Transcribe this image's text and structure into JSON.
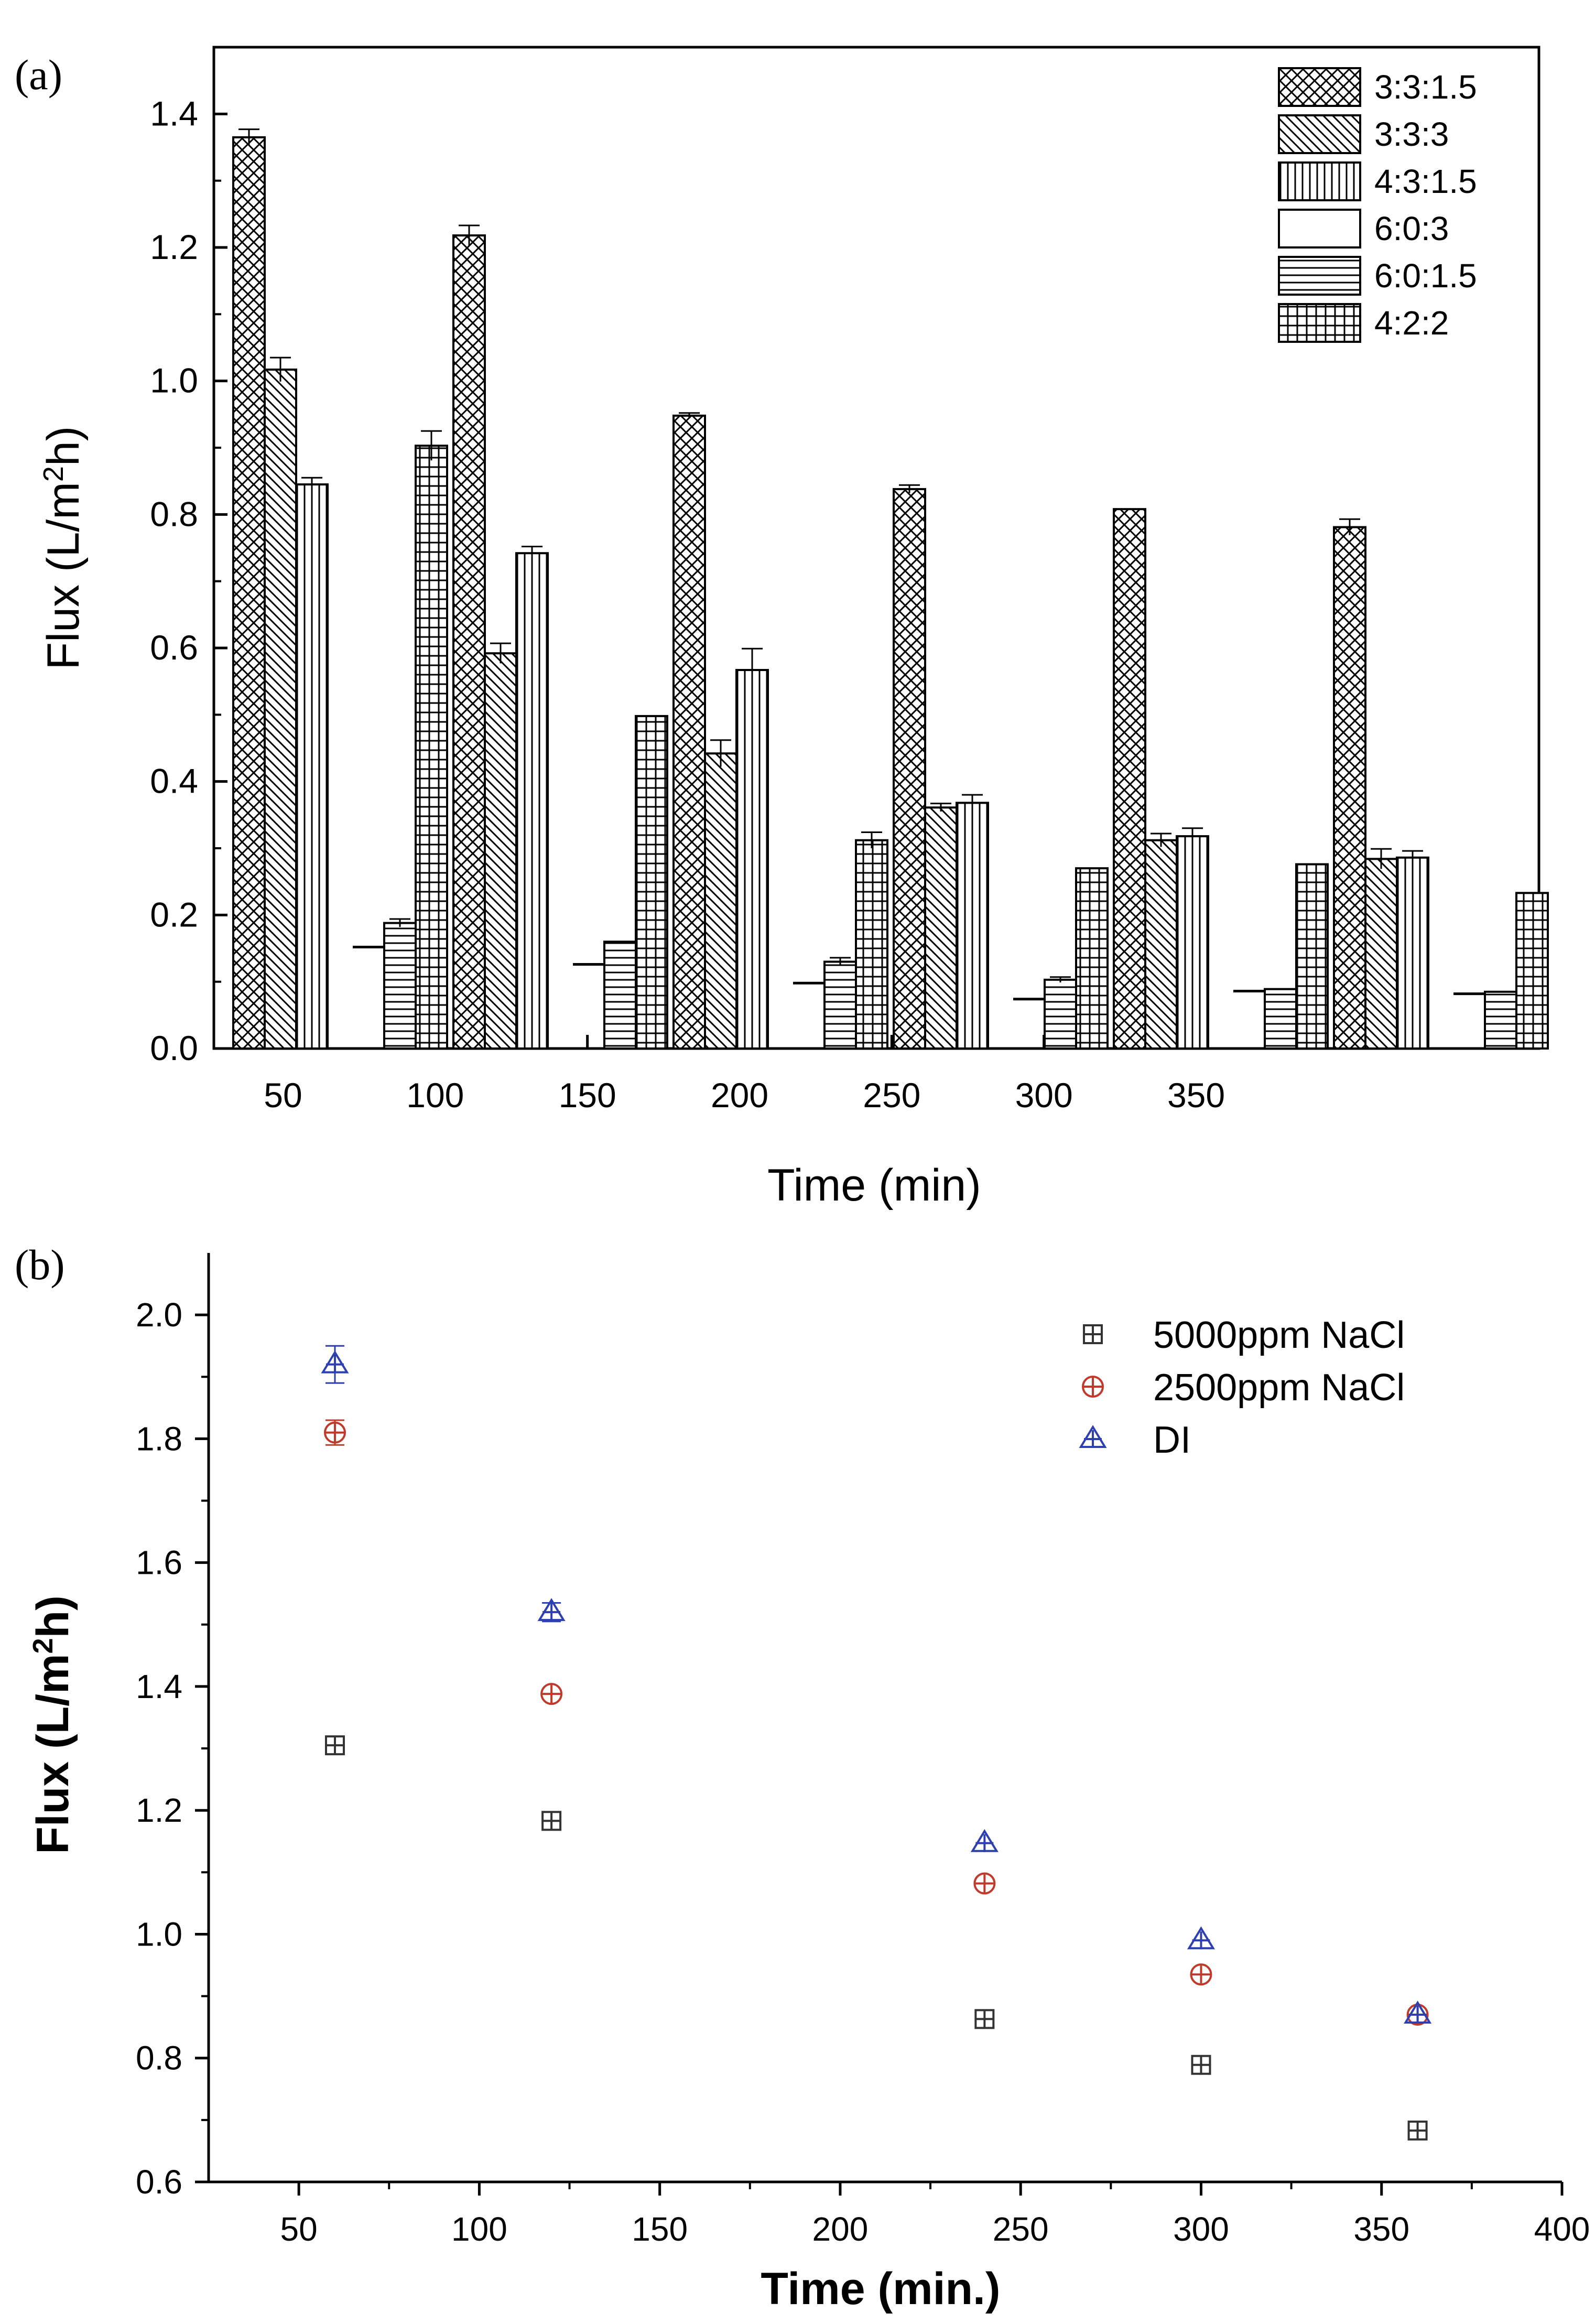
{
  "chart_data": [
    {
      "panel_label": "(a)",
      "type": "bar",
      "xlabel": "Time (min)",
      "ylabel": "Flux (L/m",
      "ylabel_sup": "2",
      "ylabel_tail": "h)",
      "ylim": [
        0,
        1.5
      ],
      "yticks": [
        "0.0",
        "0.2",
        "0.4",
        "0.6",
        "0.8",
        "1.0",
        "1.2",
        "1.4"
      ],
      "xticks": [
        "50",
        "100",
        "150",
        "200",
        "250",
        "300",
        "350"
      ],
      "categories": [
        "50",
        "100",
        "150",
        "200",
        "250",
        "300",
        "350"
      ],
      "series": [
        {
          "name": "3:3:1.5",
          "pattern": "crosshatch",
          "values": [
            1.365,
            1.218,
            0.948,
            0.838,
            0.808,
            0.781,
            0.0
          ],
          "errors": [
            0.012,
            0.015,
            0.004,
            0.006,
            0.003,
            0.012,
            0.0
          ]
        },
        {
          "name": "3:3:3",
          "pattern": "diag",
          "values": [
            1.017,
            0.592,
            0.442,
            0.361,
            0.312,
            0.284,
            0.0
          ],
          "errors": [
            0.018,
            0.015,
            0.02,
            0.006,
            0.01,
            0.015,
            0.0
          ]
        },
        {
          "name": "4:3:1.5",
          "pattern": "vertical",
          "values": [
            0.845,
            0.742,
            0.567,
            0.368,
            0.318,
            0.286,
            0.0
          ],
          "errors": [
            0.01,
            0.01,
            0.032,
            0.012,
            0.012,
            0.01,
            0.0
          ]
        },
        {
          "name": "6:0:3",
          "pattern": "blank",
          "values": [
            0.152,
            0.126,
            0.098,
            0.074,
            0.086,
            0.082,
            0.0
          ],
          "errors": [
            0.002,
            0.002,
            0.001,
            0.001,
            0.001,
            0.001,
            0.0
          ]
        },
        {
          "name": "6:0:1.5",
          "pattern": "horizontal",
          "values": [
            0.188,
            0.16,
            0.13,
            0.103,
            0.089,
            0.085,
            0.0
          ],
          "errors": [
            0.006,
            0.003,
            0.006,
            0.004,
            0.003,
            0.002,
            0.0
          ]
        },
        {
          "name": "4:2:2",
          "pattern": "grid",
          "values": [
            0.903,
            0.498,
            0.312,
            0.27,
            0.276,
            0.233,
            0.0
          ],
          "errors": [
            0.022,
            0.002,
            0.012,
            0.002,
            0.002,
            0.002,
            0.0
          ]
        }
      ],
      "legend_position": "top-right"
    },
    {
      "panel_label": "(b)",
      "type": "scatter",
      "xlabel": "Time (min.)",
      "ylabel": "Flux (L/m",
      "ylabel_sup": "2",
      "ylabel_tail": "h)",
      "xlim": [
        25,
        400
      ],
      "ylim": [
        0.6,
        2.1
      ],
      "xticks": [
        "50",
        "100",
        "150",
        "200",
        "250",
        "300",
        "350",
        "400"
      ],
      "yticks": [
        "0.6",
        "0.8",
        "1.0",
        "1.2",
        "1.4",
        "1.6",
        "1.8",
        "2.0"
      ],
      "x": [
        60,
        120,
        240,
        300,
        360
      ],
      "series": [
        {
          "name": "5000ppm NaCl",
          "marker": "square-plus",
          "color": "#333333",
          "values": [
            1.305,
            1.183,
            0.863,
            0.789,
            0.683
          ],
          "errors": [
            0.01,
            0.01,
            0.008,
            0.008,
            0.008
          ]
        },
        {
          "name": "2500ppm NaCl",
          "marker": "circle-plus",
          "color": "#c0392b",
          "values": [
            1.81,
            1.388,
            1.082,
            0.935,
            0.87
          ],
          "errors": [
            0.02,
            0.008,
            0.008,
            0.008,
            0.008
          ]
        },
        {
          "name": "DI",
          "marker": "triangle-plus",
          "color": "#2e3fb0",
          "values": [
            1.92,
            1.52,
            1.147,
            0.99,
            0.87
          ],
          "errors": [
            0.03,
            0.015,
            0.01,
            0.01,
            0.01
          ]
        }
      ],
      "legend_position": "top-right"
    }
  ]
}
